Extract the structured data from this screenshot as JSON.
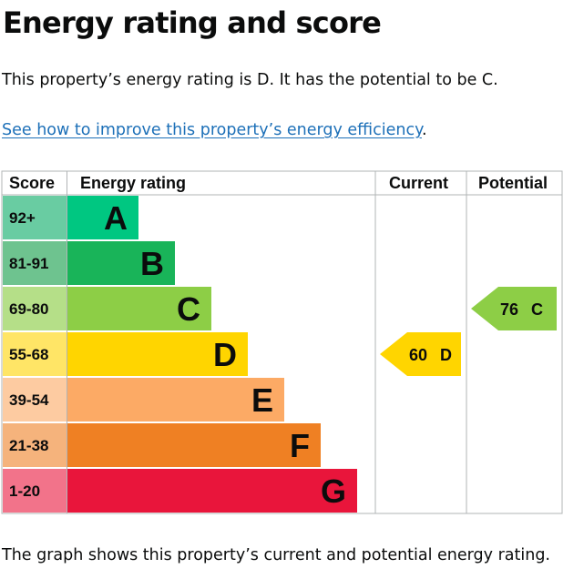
{
  "page": {
    "title": "Energy rating and score",
    "summary": "This property’s energy rating is D. It has the potential to be C.",
    "improve_link": "See how to improve this property’s energy efficiency",
    "improve_link_suffix": ".",
    "caption": "The graph shows this property’s current and potential energy rating."
  },
  "chart_data": {
    "type": "bar",
    "headers": {
      "score": "Score",
      "rating": "Energy rating",
      "current": "Current",
      "potential": "Potential"
    },
    "bands": [
      {
        "letter": "A",
        "range": "92+",
        "color": "#00c781",
        "score_bg": "#69cca2"
      },
      {
        "letter": "B",
        "range": "81-91",
        "color": "#19b459",
        "score_bg": "#6ec38f"
      },
      {
        "letter": "C",
        "range": "69-80",
        "color": "#8dce46",
        "score_bg": "#b5df88"
      },
      {
        "letter": "D",
        "range": "55-68",
        "color": "#ffd500",
        "score_bg": "#ffe566"
      },
      {
        "letter": "E",
        "range": "39-54",
        "color": "#fcaa65",
        "score_bg": "#fdcba1"
      },
      {
        "letter": "F",
        "range": "21-38",
        "color": "#ef8023",
        "score_bg": "#f5b37c"
      },
      {
        "letter": "G",
        "range": "1-20",
        "color": "#e9153b",
        "score_bg": "#f2738a"
      }
    ],
    "current": {
      "score": 60,
      "letter": "D",
      "color": "#ffd500"
    },
    "potential": {
      "score": 76,
      "letter": "C",
      "color": "#8dce46"
    }
  }
}
